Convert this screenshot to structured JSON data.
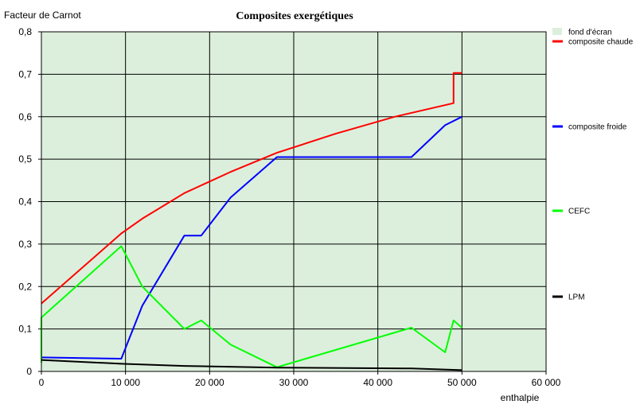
{
  "chart_data": {
    "type": "line",
    "title": "Composites exergétiques",
    "xlabel": "enthalpie",
    "ylabel": "Facteur de Carnot",
    "xlim": [
      0,
      60000
    ],
    "ylim": [
      0,
      0.8
    ],
    "x_ticks": [
      "0",
      "10 000",
      "20 000",
      "30 000",
      "40 000",
      "50 000",
      "60 000"
    ],
    "y_ticks": [
      "0",
      "0,1",
      "0,2",
      "0,3",
      "0,4",
      "0,5",
      "0,6",
      "0,7",
      "0,8"
    ],
    "x_tick_values": [
      0,
      10000,
      20000,
      30000,
      40000,
      50000,
      60000
    ],
    "y_tick_values": [
      0,
      0.1,
      0.2,
      0.3,
      0.4,
      0.5,
      0.6,
      0.7,
      0.8
    ],
    "grid": true,
    "background_color": "#dcefdc",
    "legend_placement": "right",
    "legend": [
      {
        "name": "fond d'écran",
        "color": "#dcefdc",
        "kind": "swatch"
      },
      {
        "name": "composite chaude",
        "color": "#ff0000",
        "kind": "line"
      },
      {
        "name": "composite froide",
        "color": "#0000ff",
        "kind": "line"
      },
      {
        "name": "CEFC",
        "color": "#00ff00",
        "kind": "line"
      },
      {
        "name": "LPM",
        "color": "#000000",
        "kind": "line"
      }
    ],
    "series": [
      {
        "name": "composite chaude",
        "color": "#ff0000",
        "points": [
          [
            0,
            0.16
          ],
          [
            9500,
            0.325
          ],
          [
            12000,
            0.36
          ],
          [
            17000,
            0.42
          ],
          [
            22500,
            0.47
          ],
          [
            28000,
            0.515
          ],
          [
            35000,
            0.56
          ],
          [
            42000,
            0.6
          ],
          [
            49000,
            0.632
          ],
          [
            49000,
            0.703
          ],
          [
            50000,
            0.703
          ]
        ]
      },
      {
        "name": "composite froide",
        "color": "#0000ff",
        "points": [
          [
            0,
            0.033
          ],
          [
            9500,
            0.03
          ],
          [
            12000,
            0.155
          ],
          [
            17000,
            0.32
          ],
          [
            19000,
            0.32
          ],
          [
            22500,
            0.41
          ],
          [
            28000,
            0.505
          ],
          [
            44000,
            0.505
          ],
          [
            48000,
            0.58
          ],
          [
            50000,
            0.6
          ]
        ]
      },
      {
        "name": "CEFC",
        "color": "#00ff00",
        "points": [
          [
            0,
            0.02
          ],
          [
            0,
            0.127
          ],
          [
            9500,
            0.295
          ],
          [
            12000,
            0.2
          ],
          [
            17000,
            0.1
          ],
          [
            19000,
            0.12
          ],
          [
            22500,
            0.063
          ],
          [
            28000,
            0.01
          ],
          [
            44000,
            0.103
          ],
          [
            48000,
            0.045
          ],
          [
            49000,
            0.12
          ],
          [
            50000,
            0.103
          ]
        ]
      },
      {
        "name": "LPM",
        "color": "#000000",
        "points": [
          [
            0,
            0.027
          ],
          [
            9500,
            0.018
          ],
          [
            17000,
            0.013
          ],
          [
            28000,
            0.009
          ],
          [
            44000,
            0.007
          ],
          [
            50000,
            0.003
          ]
        ]
      }
    ]
  }
}
